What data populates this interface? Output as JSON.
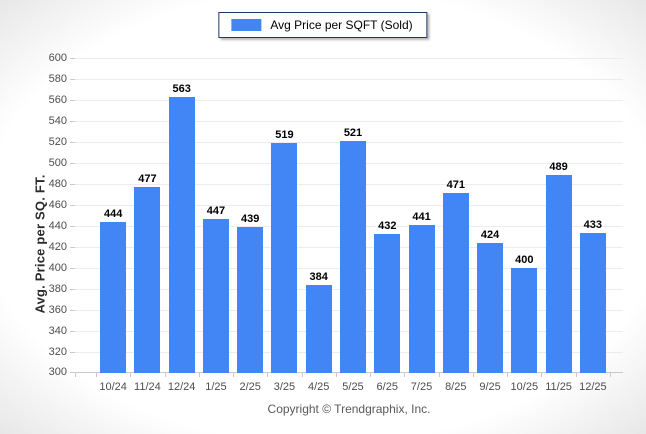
{
  "footer": {
    "copyright": "Copyright © Trendgraphix, Inc."
  },
  "chart_data": {
    "type": "bar",
    "title": "",
    "legend": [
      "Avg Price per SQFT (Sold)"
    ],
    "categories": [
      "10/24",
      "11/24",
      "12/24",
      "1/25",
      "2/25",
      "3/25",
      "4/25",
      "5/25",
      "6/25",
      "7/25",
      "8/25",
      "9/25",
      "10/25",
      "11/25",
      "12/25"
    ],
    "values": [
      444,
      477,
      563,
      447,
      439,
      519,
      384,
      521,
      432,
      441,
      471,
      424,
      400,
      489,
      433
    ],
    "xlabel": "",
    "ylabel": "Avg. Price per SQ. FT.",
    "ylim": [
      300,
      600
    ],
    "ytick_step": 20,
    "grid": "horizontal",
    "legend_position": "top-center",
    "value_labels": true,
    "colors": {
      "bar": "#4285f4",
      "legend_border": "#1f3864",
      "gridline": "#ececec",
      "axis": "#c9c9c9",
      "value_label": "#000000",
      "tick_label": "#4d4d4d",
      "copyright": "#595959"
    }
  }
}
